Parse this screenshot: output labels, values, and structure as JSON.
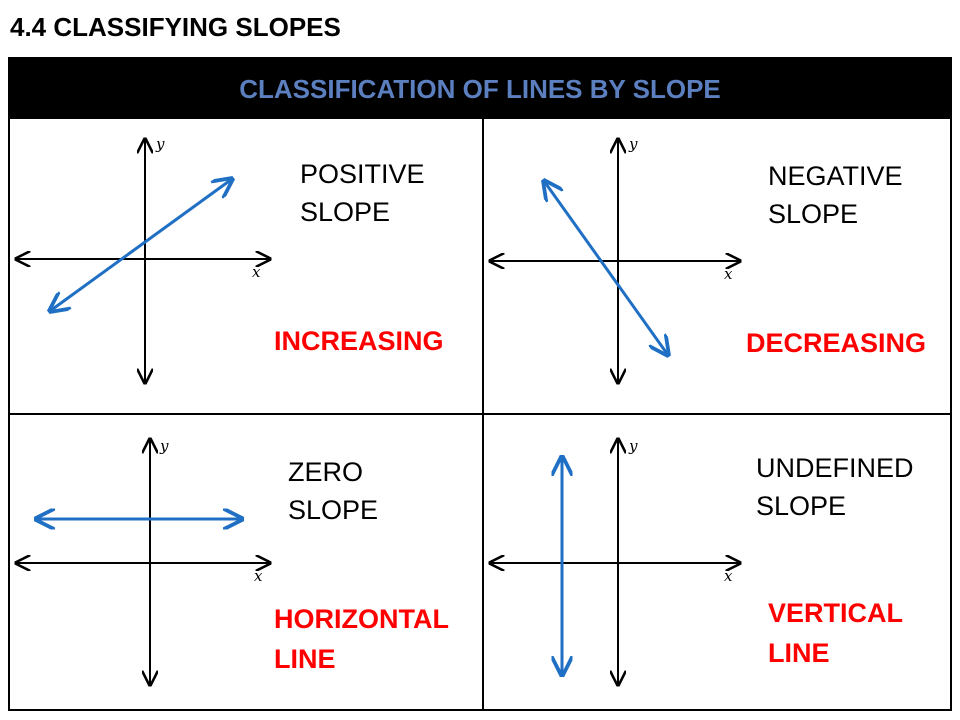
{
  "slide_title": "4.4 CLASSIFYING SLOPES",
  "table": {
    "header": "CLASSIFICATION OF LINES BY SLOPE",
    "cells": [
      {
        "slope_line1": "POSITIVE",
        "slope_line2": "SLOPE",
        "desc_line1": "INCREASING",
        "desc_line2": "",
        "axis_x": "x",
        "axis_y": "y"
      },
      {
        "slope_line1": "NEGATIVE",
        "slope_line2": "SLOPE",
        "desc_line1": "DECREASING",
        "desc_line2": "",
        "axis_x": "x",
        "axis_y": "y"
      },
      {
        "slope_line1": "ZERO",
        "slope_line2": "SLOPE",
        "desc_line1": "HORIZONTAL",
        "desc_line2": "LINE",
        "axis_x": "x",
        "axis_y": "y"
      },
      {
        "slope_line1": "UNDEFINED",
        "slope_line2": "SLOPE",
        "desc_line1": "VERTICAL",
        "desc_line2": "LINE",
        "axis_x": "x",
        "axis_y": "y"
      }
    ]
  },
  "colors": {
    "header_background": "#000000",
    "header_text": "#5b7fbf",
    "line_color": "#1f6fc4",
    "description_text": "#ff0000"
  }
}
